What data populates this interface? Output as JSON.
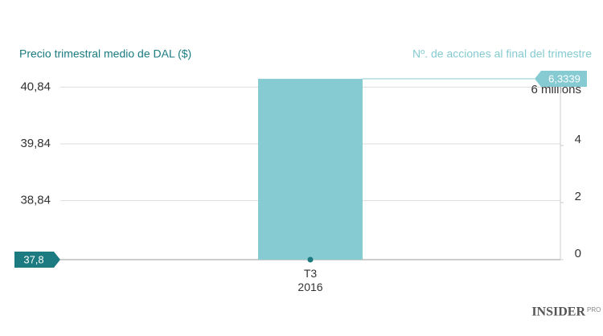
{
  "chart_data": {
    "type": "bar",
    "categories": [
      "T3\n2016"
    ],
    "series": [
      {
        "name": "Nº. de acciones al final del trimestre",
        "color": "#85cbd1",
        "axis": "y2",
        "values": [
          6.3339
        ],
        "value_labels": [
          "6,3339"
        ]
      },
      {
        "name": "Precio trimestral medio de DAL ($)",
        "color": "#1b7b80",
        "values": [
          37.8
        ],
        "value_labels": [
          "37,8"
        ]
      }
    ],
    "ylim": [
      37.8,
      41.03
    ],
    "yticks": [
      {
        "value": 38.84,
        "label": "38,84"
      },
      {
        "value": 39.84,
        "label": "39,84"
      },
      {
        "value": 40.84,
        "label": "40,84"
      }
    ],
    "y2lim": [
      0,
      6.42
    ],
    "y2ticks": [
      0,
      2,
      4,
      {
        "value": 6,
        "label": "6 millions"
      }
    ],
    "grid": true,
    "logo": {
      "main": "INSIDER",
      "sub": "PRO"
    }
  }
}
